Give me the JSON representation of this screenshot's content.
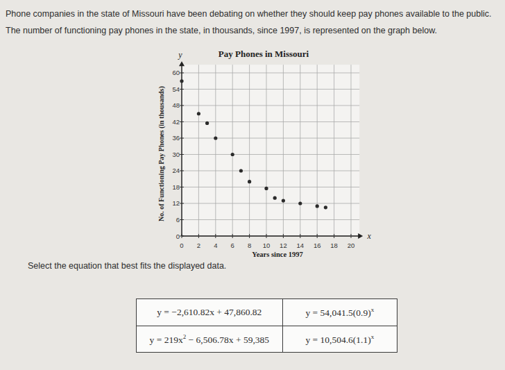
{
  "intro": "Phone companies in the state of Missouri have been debating on whether they should keep pay phones available to the public. The number of functioning pay phones in the state, in thousands, since 1997, is represented on the graph below.",
  "chart_data": {
    "type": "scatter",
    "title": "Pay Phones in Missouri",
    "x_label": "Years since 1997",
    "y_label": "No. of Functioning Pay Phones (in thousands)",
    "x_axis_name": "x",
    "y_axis_name": "y",
    "x": [
      0,
      2,
      3,
      4,
      6,
      7,
      8,
      10,
      11,
      12,
      14,
      16,
      17
    ],
    "values": [
      57,
      45,
      41.5,
      36,
      30,
      24,
      20,
      17.5,
      14,
      13,
      12,
      11,
      10.5
    ],
    "color": "#2b2b2b",
    "marker": "circle",
    "xlim": [
      0,
      21
    ],
    "ylim": [
      0,
      63
    ],
    "xticks": [
      0,
      2,
      4,
      6,
      8,
      10,
      12,
      14,
      16,
      18,
      20
    ],
    "yticks": [
      0,
      6,
      12,
      18,
      24,
      30,
      36,
      42,
      48,
      54,
      60
    ],
    "grid": true
  },
  "question": "Select the equation that best fits the displayed data.",
  "table": {
    "rows": [
      [
        [
          {
            "text": "y = −2,610.82x + 47,860.82"
          }
        ],
        [
          {
            "text": "y = 54,041.5(0.9)"
          },
          {
            "sup": "x"
          }
        ]
      ],
      [
        [
          {
            "text": "y = 219x"
          },
          {
            "sup": "2"
          },
          {
            "text": " − 6,506.78x + 59,385"
          }
        ],
        [
          {
            "text": "y = 10,504.6(1.1)"
          },
          {
            "sup": "x"
          }
        ]
      ]
    ]
  }
}
